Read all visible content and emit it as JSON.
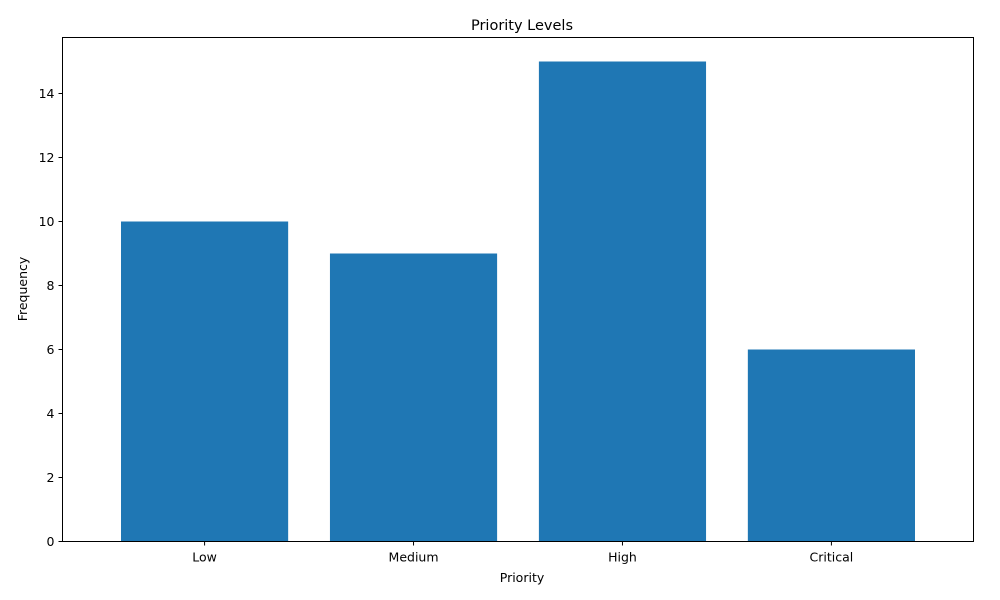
{
  "chart_data": {
    "type": "bar",
    "title": "Priority Levels",
    "xlabel": "Priority",
    "ylabel": "Frequency",
    "categories": [
      "Low",
      "Medium",
      "High",
      "Critical"
    ],
    "values": [
      10,
      9,
      15,
      6
    ],
    "ylim": [
      0,
      15.75
    ],
    "yticks": [
      0,
      2,
      4,
      6,
      8,
      10,
      12,
      14
    ],
    "bar_color": "#1f77b4",
    "grid": false,
    "legend": "none"
  }
}
